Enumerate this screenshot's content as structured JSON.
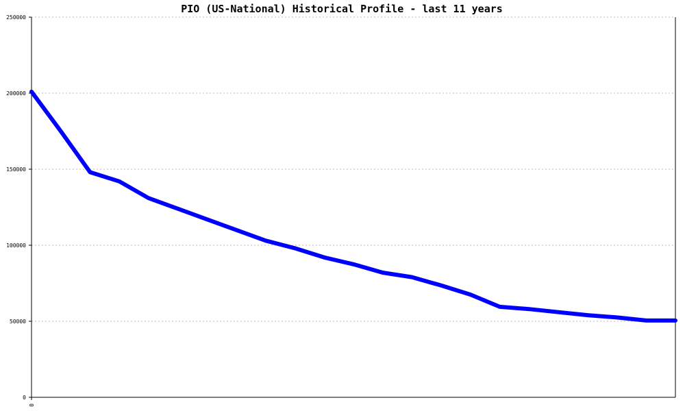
{
  "chart_data": {
    "type": "line",
    "title": "PIO (US-National) Historical Profile - last 11 years",
    "xlabel": "",
    "ylabel": "",
    "ylim": [
      0,
      250000
    ],
    "yticks": [
      0,
      50000,
      100000,
      150000,
      200000,
      250000
    ],
    "ytick_labels": [
      "0",
      "50000",
      "100000",
      "150000",
      "200000",
      "250000"
    ],
    "xtick_labels": [
      "0"
    ],
    "grid": true,
    "series": [
      {
        "color": "#0000ff",
        "x": [
          0,
          1,
          2,
          3,
          4,
          5,
          6,
          7,
          8,
          9,
          10,
          11,
          12,
          13,
          14,
          15,
          16,
          17,
          18,
          19,
          20,
          21,
          22
        ],
        "values": [
          201000,
          175000,
          148000,
          142000,
          131000,
          124000,
          117000,
          110000,
          103000,
          98000,
          92000,
          87500,
          82000,
          79000,
          73500,
          67500,
          59500,
          58000,
          56000,
          54000,
          52500,
          50500,
          50500
        ]
      }
    ]
  }
}
